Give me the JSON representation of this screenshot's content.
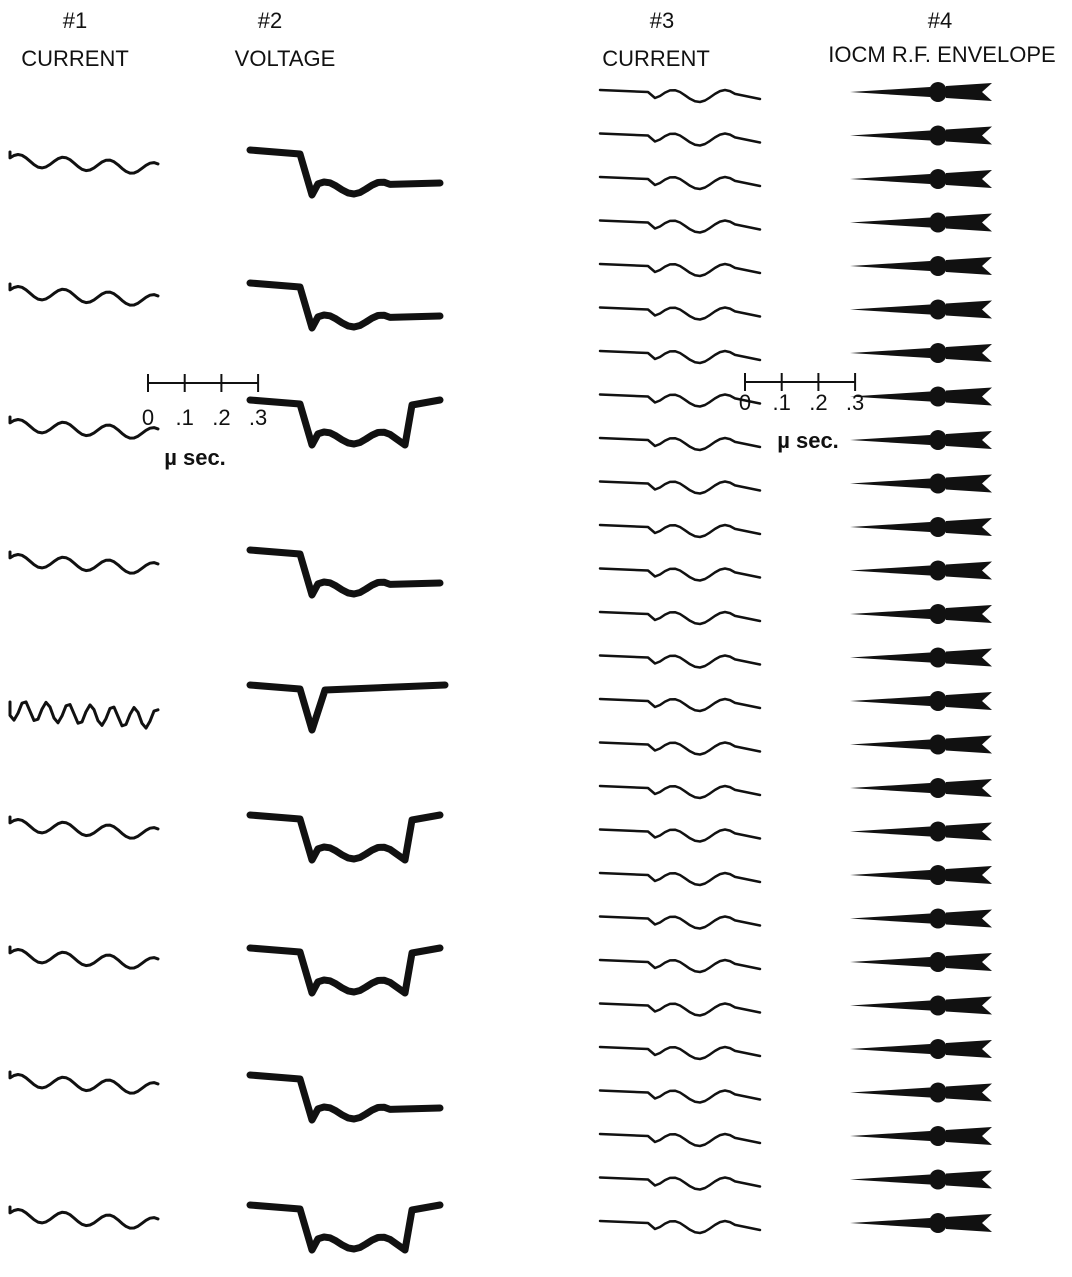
{
  "columns": [
    {
      "number": "#1",
      "label": "CURRENT"
    },
    {
      "number": "#2",
      "label": "VOLTAGE"
    },
    {
      "number": "#3",
      "label": "CURRENT"
    },
    {
      "number": "#4",
      "label": "IOCM R.F. ENVELOPE"
    }
  ],
  "scale_bars": [
    {
      "ticks": [
        "0",
        ".1",
        ".2",
        ".3"
      ],
      "unit": "µ sec."
    },
    {
      "ticks": [
        "0",
        ".1",
        ".2",
        ".3"
      ],
      "unit": "µ sec."
    }
  ]
}
